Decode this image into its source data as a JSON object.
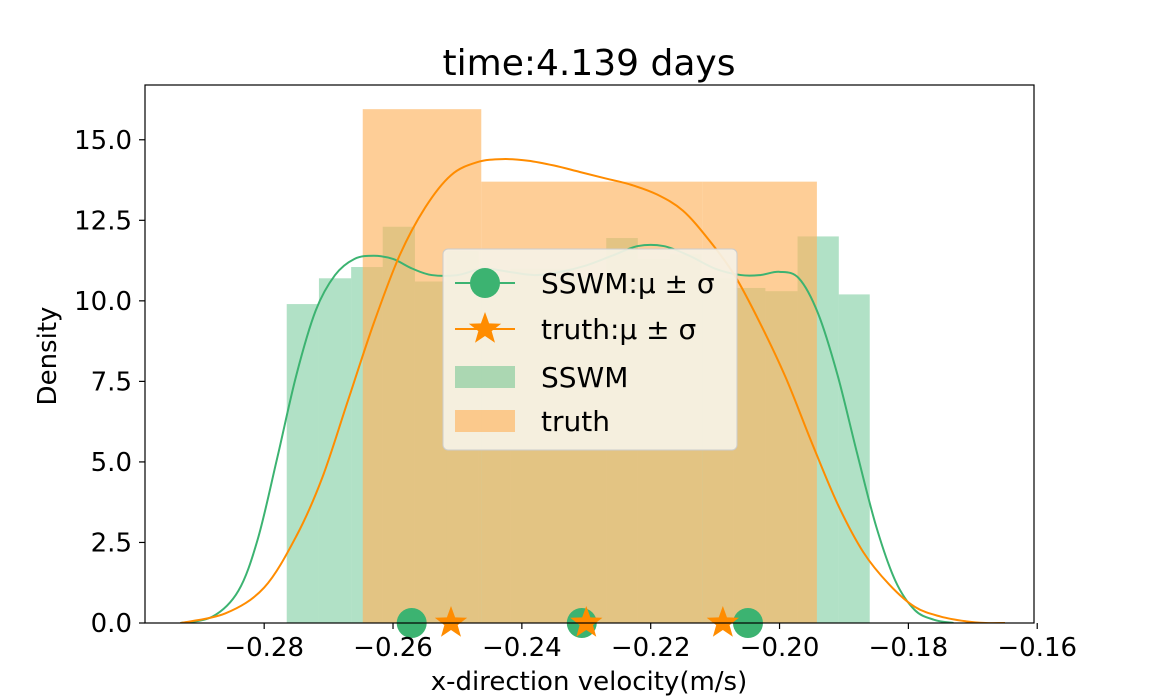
{
  "chart_data": {
    "type": "histogram",
    "title": "time:4.139 days",
    "xlabel": "x-direction velocity(m/s)",
    "ylabel": "Density",
    "xlim": [
      -0.2985,
      -0.1605
    ],
    "ylim": [
      0,
      16.7
    ],
    "xticks": [
      -0.28,
      -0.26,
      -0.24,
      -0.22,
      -0.2,
      -0.18,
      -0.16
    ],
    "xtick_labels": [
      "−0.28",
      "−0.26",
      "−0.24",
      "−0.22",
      "−0.20",
      "−0.18",
      "−0.16"
    ],
    "yticks": [
      0,
      2.5,
      5.0,
      7.5,
      10.0,
      12.5,
      15.0
    ],
    "ytick_labels": [
      "0.0",
      "2.5",
      "5.0",
      "7.5",
      "10.0",
      "12.5",
      "15.0"
    ],
    "grid": false,
    "legend_position": "center",
    "series": [
      {
        "name": "SSWM",
        "legend_label": "SSWM",
        "color": "#3cb371",
        "bar_opacity": 0.4,
        "bins": [
          {
            "x0": -0.2765,
            "x1": -0.2715,
            "density": 9.9
          },
          {
            "x0": -0.2715,
            "x1": -0.2665,
            "density": 10.7
          },
          {
            "x0": -0.2665,
            "x1": -0.2616,
            "density": 11.05
          },
          {
            "x0": -0.2616,
            "x1": -0.2566,
            "density": 12.3
          },
          {
            "x0": -0.2566,
            "x1": -0.2517,
            "density": 10.6
          },
          {
            "x0": -0.2517,
            "x1": -0.2467,
            "density": 11.55
          },
          {
            "x0": -0.2467,
            "x1": -0.2418,
            "density": 10.6
          },
          {
            "x0": -0.2418,
            "x1": -0.2368,
            "density": 11.0
          },
          {
            "x0": -0.2368,
            "x1": -0.2319,
            "density": 11.0
          },
          {
            "x0": -0.2319,
            "x1": -0.2269,
            "density": 10.75
          },
          {
            "x0": -0.2269,
            "x1": -0.222,
            "density": 11.95
          },
          {
            "x0": -0.222,
            "x1": -0.217,
            "density": 11.3
          },
          {
            "x0": -0.217,
            "x1": -0.2121,
            "density": 11.45
          },
          {
            "x0": -0.2121,
            "x1": -0.2071,
            "density": 10.7
          },
          {
            "x0": -0.2071,
            "x1": -0.2022,
            "density": 10.4
          },
          {
            "x0": -0.2022,
            "x1": -0.1972,
            "density": 10.3
          },
          {
            "x0": -0.1972,
            "x1": -0.1908,
            "density": 12.0
          },
          {
            "x0": -0.1908,
            "x1": -0.186,
            "density": 10.2
          }
        ],
        "kde_x": [
          -0.293,
          -0.288,
          -0.284,
          -0.281,
          -0.278,
          -0.275,
          -0.272,
          -0.269,
          -0.266,
          -0.263,
          -0.26,
          -0.257,
          -0.254,
          -0.25,
          -0.246,
          -0.242,
          -0.238,
          -0.234,
          -0.23,
          -0.226,
          -0.222,
          -0.218,
          -0.214,
          -0.21,
          -0.206,
          -0.203,
          -0.2,
          -0.197,
          -0.194,
          -0.191,
          -0.188,
          -0.185,
          -0.182,
          -0.179,
          -0.176,
          -0.173
        ],
        "kde_y": [
          0.0,
          0.2,
          1.0,
          2.6,
          5.1,
          7.7,
          9.7,
          10.8,
          11.3,
          11.4,
          11.3,
          11.0,
          10.8,
          10.8,
          11.0,
          10.9,
          10.8,
          10.9,
          11.1,
          11.4,
          11.7,
          11.7,
          11.4,
          11.0,
          10.8,
          10.8,
          10.9,
          10.7,
          9.6,
          7.7,
          5.3,
          3.0,
          1.3,
          0.4,
          0.1,
          0.0
        ],
        "markers": [
          -0.2571,
          -0.2307,
          -0.2049
        ],
        "marker_label": "SSWM:μ ± σ"
      },
      {
        "name": "truth",
        "legend_label": "truth",
        "color": "#ff8c00",
        "bar_color": "#fdb35f",
        "bar_opacity": 0.65,
        "bins": [
          {
            "x0": -0.2647,
            "x1": -0.2463,
            "density": 15.95
          },
          {
            "x0": -0.2463,
            "x1": -0.212,
            "density": 13.7
          },
          {
            "x0": -0.212,
            "x1": -0.1942,
            "density": 13.7
          }
        ],
        "inner_bins": [
          {
            "x0": -0.212,
            "x1": -0.1942,
            "density": 10.35
          }
        ],
        "kde_x": [
          -0.293,
          -0.286,
          -0.28,
          -0.275,
          -0.271,
          -0.267,
          -0.263,
          -0.259,
          -0.255,
          -0.251,
          -0.247,
          -0.243,
          -0.239,
          -0.235,
          -0.231,
          -0.227,
          -0.223,
          -0.219,
          -0.215,
          -0.211,
          -0.207,
          -0.203,
          -0.199,
          -0.195,
          -0.191,
          -0.187,
          -0.183,
          -0.179,
          -0.175,
          -0.171,
          -0.168,
          -0.165
        ],
        "kde_y": [
          0.0,
          0.3,
          1.1,
          2.7,
          4.5,
          6.9,
          9.3,
          11.4,
          12.9,
          13.9,
          14.3,
          14.4,
          14.35,
          14.2,
          14.0,
          13.8,
          13.6,
          13.3,
          12.8,
          11.9,
          10.8,
          9.3,
          7.6,
          5.6,
          3.7,
          2.2,
          1.2,
          0.5,
          0.2,
          0.05,
          0.0,
          0.0
        ],
        "markers": [
          -0.251,
          -0.23,
          -0.2088
        ],
        "marker_label": "truth:μ ± σ"
      }
    ]
  }
}
